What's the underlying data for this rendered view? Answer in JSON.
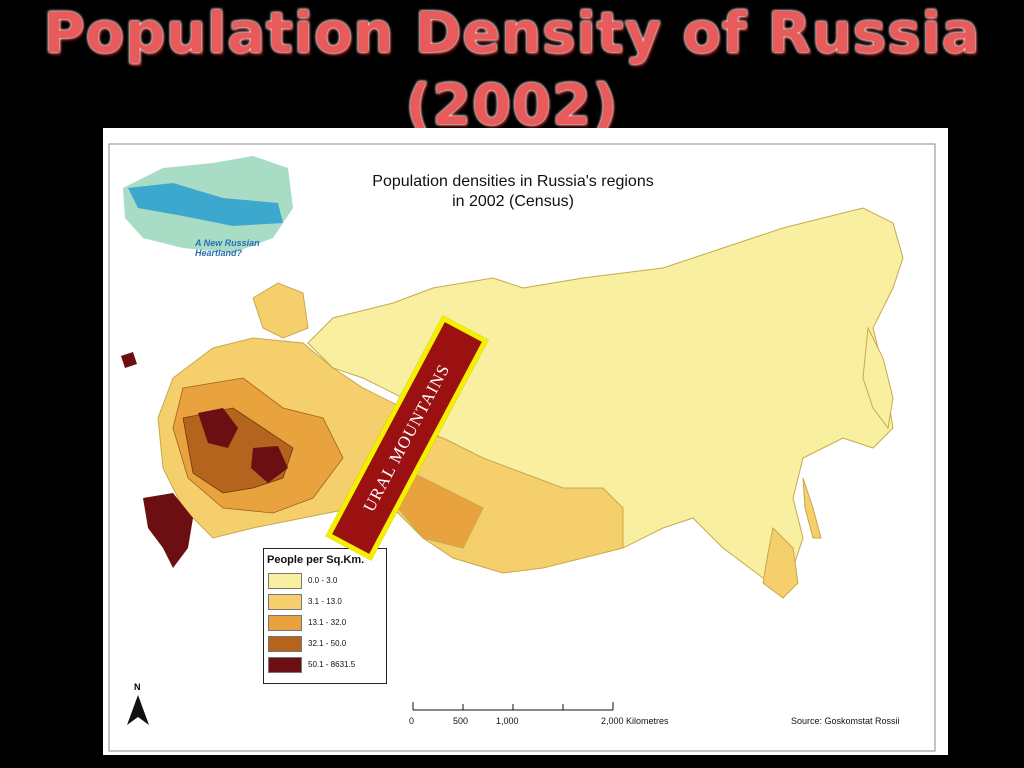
{
  "slide": {
    "title_line1": "Population Density of Russia",
    "title_line2": "(2002)"
  },
  "map": {
    "title_line1": "Population densities in Russia's regions",
    "title_line2": "in 2002 (Census)",
    "inset_caption_line1": "A New Russian",
    "inset_caption_line2": "Heartland?",
    "callout": "URAL MOUNTAINS",
    "north_label": "N",
    "source": "Source: Goskomstat Rossii"
  },
  "legend": {
    "title": "People per Sq.Km.",
    "items": [
      {
        "label": "0.0 - 3.0",
        "color": "#f8f0a0"
      },
      {
        "label": "3.1 - 13.0",
        "color": "#f4cf6c"
      },
      {
        "label": "13.1 - 32.0",
        "color": "#e9a33e"
      },
      {
        "label": "32.1 - 50.0",
        "color": "#b5641e"
      },
      {
        "label": "50.1 - 8631.5",
        "color": "#6b0f12"
      }
    ]
  },
  "scale_bar": {
    "labels": [
      "0",
      "500",
      "1,000",
      "2,000 Kilometres"
    ]
  }
}
